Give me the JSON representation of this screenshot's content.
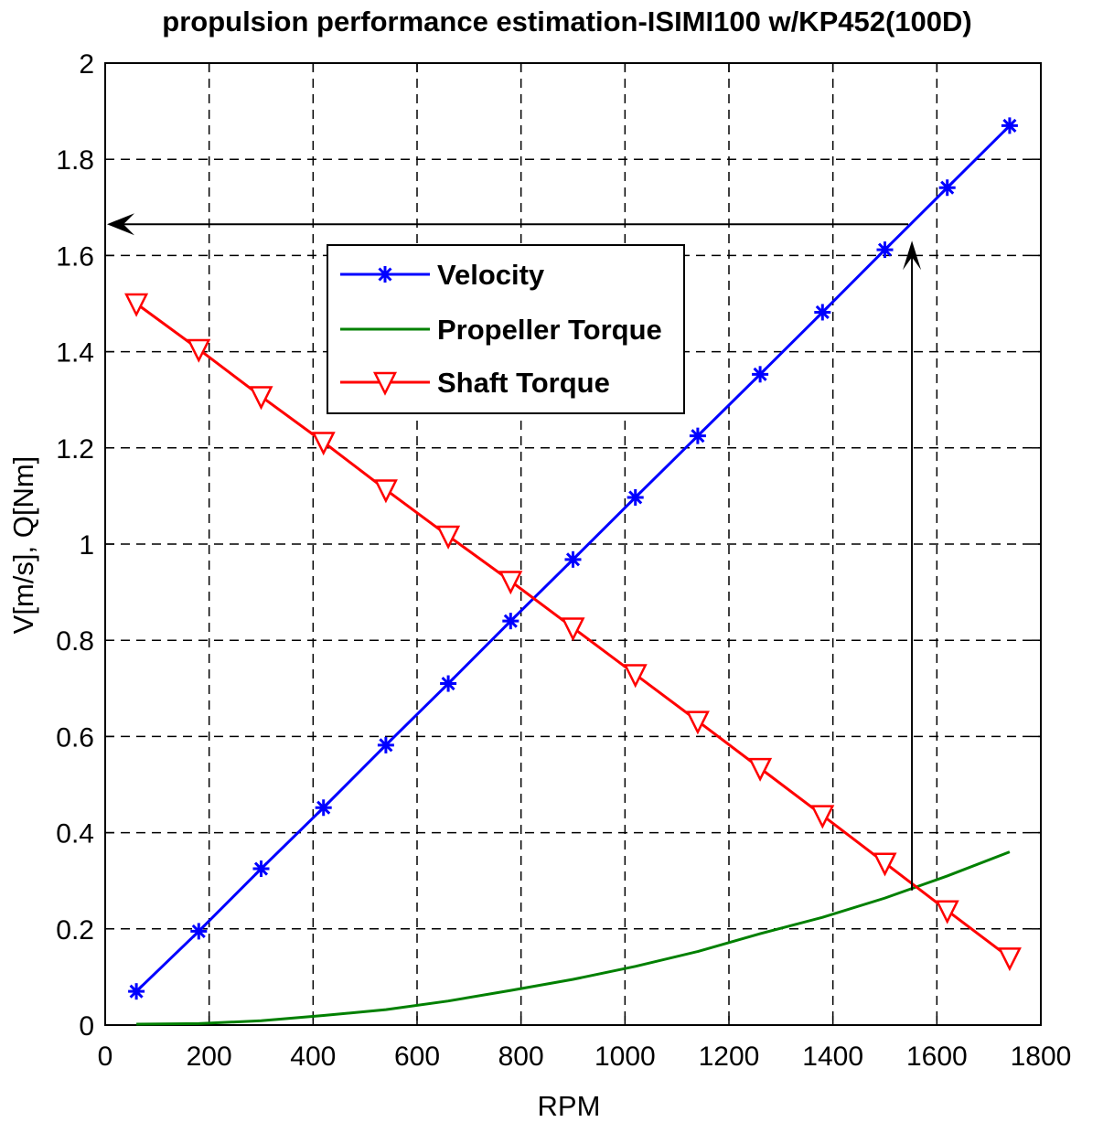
{
  "chart_data": {
    "type": "line",
    "title": "propulsion performance estimation-ISIMI100 w/KP452(100D)",
    "xlabel": "RPM",
    "ylabel": "V[m/s],  Q[Nm]",
    "xlim": [
      0,
      1800
    ],
    "ylim": [
      0,
      2
    ],
    "xticks": [
      0,
      200,
      400,
      600,
      800,
      1000,
      1200,
      1400,
      1600,
      1800
    ],
    "yticks": [
      0,
      0.2,
      0.4,
      0.6,
      0.8,
      1,
      1.2,
      1.4,
      1.6,
      1.8,
      2
    ],
    "xtick_labels": [
      "0",
      "200",
      "400",
      "600",
      "800",
      "1000",
      "1200",
      "1400",
      "1600",
      "1800"
    ],
    "ytick_labels": [
      "0",
      "0.2",
      "0.4",
      "0.6",
      "0.8",
      "1",
      "1.2",
      "1.4",
      "1.6",
      "1.8",
      "2"
    ],
    "grid": true,
    "grid_style": "dashed",
    "legend_position": "upper-center",
    "x": [
      60,
      180,
      300,
      420,
      540,
      660,
      780,
      900,
      1020,
      1140,
      1260,
      1380,
      1500,
      1620,
      1740
    ],
    "series": [
      {
        "name": "Velocity",
        "color": "#0000ff",
        "marker": "asterisk",
        "values": [
          0.07,
          0.195,
          0.325,
          0.452,
          0.582,
          0.71,
          0.84,
          0.968,
          1.097,
          1.225,
          1.353,
          1.482,
          1.612,
          1.741,
          1.87
        ]
      },
      {
        "name": "Propeller Torque",
        "color": "#008000",
        "marker": "none",
        "values": [
          0.002,
          0.003,
          0.009,
          0.02,
          0.032,
          0.05,
          0.072,
          0.095,
          0.122,
          0.153,
          0.19,
          0.224,
          0.264,
          0.31,
          0.36
        ]
      },
      {
        "name": "Shaft Torque",
        "color": "#ff0000",
        "marker": "triangle-down",
        "values": [
          1.5,
          1.405,
          1.307,
          1.212,
          1.113,
          1.017,
          0.923,
          0.826,
          0.729,
          0.632,
          0.534,
          0.436,
          0.337,
          0.238,
          0.14
        ]
      }
    ],
    "annotations": [
      {
        "type": "arrow-path",
        "description": "vertical arrow from torque intersection up to velocity curve, then horizontal arrow to y-axis",
        "x_rpm": 1545,
        "y_start": 0.28,
        "y_end": 1.665
      }
    ]
  }
}
